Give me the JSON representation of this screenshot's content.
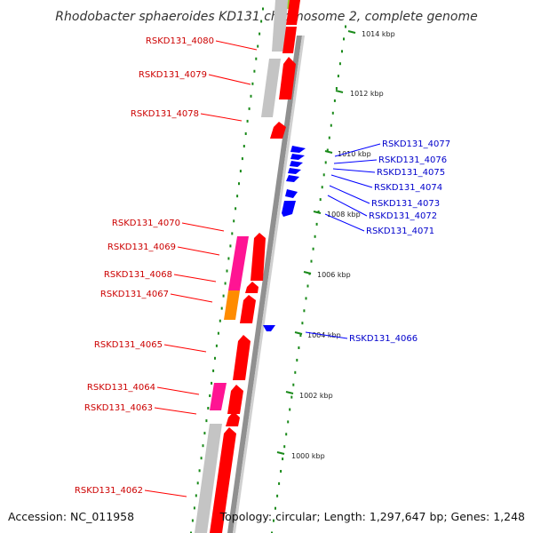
{
  "title": "Rhodobacter sphaeroides KD131 chromosome 2, complete genome",
  "footer": {
    "accession": "Accession: NC_011958",
    "summary": "Topology: circular; Length: 1,297,647 bp; Genes: 1,248"
  },
  "colors": {
    "forward": "#ff0000",
    "reverse": "#0000ff",
    "pseudo": "#c0c0c0",
    "rna": "#ff1493",
    "misc": "#ff8c00",
    "ticks": "#1a8a1a",
    "backbone": "#808080",
    "accent": "#99cc33"
  },
  "scale": {
    "unit": "kbp",
    "ticks": [
      {
        "label": "1014 kbp"
      },
      {
        "label": "1012 kbp"
      },
      {
        "label": "1010 kbp"
      },
      {
        "label": "1008 kbp"
      },
      {
        "label": "1006 kbp"
      },
      {
        "label": "1004 kbp"
      },
      {
        "label": "1002 kbp"
      },
      {
        "label": "1000 kbp"
      }
    ]
  },
  "genes_forward": [
    {
      "label": "RSKD131_4080"
    },
    {
      "label": "RSKD131_4079"
    },
    {
      "label": "RSKD131_4078"
    },
    {
      "label": "RSKD131_4070"
    },
    {
      "label": "RSKD131_4069"
    },
    {
      "label": "RSKD131_4068"
    },
    {
      "label": "RSKD131_4067"
    },
    {
      "label": "RSKD131_4065"
    },
    {
      "label": "RSKD131_4064"
    },
    {
      "label": "RSKD131_4063"
    },
    {
      "label": "RSKD131_4062"
    }
  ],
  "genes_reverse": [
    {
      "label": "RSKD131_4077"
    },
    {
      "label": "RSKD131_4076"
    },
    {
      "label": "RSKD131_4075"
    },
    {
      "label": "RSKD131_4074"
    },
    {
      "label": "RSKD131_4073"
    },
    {
      "label": "RSKD131_4072"
    },
    {
      "label": "RSKD131_4071"
    },
    {
      "label": "RSKD131_4066"
    }
  ]
}
